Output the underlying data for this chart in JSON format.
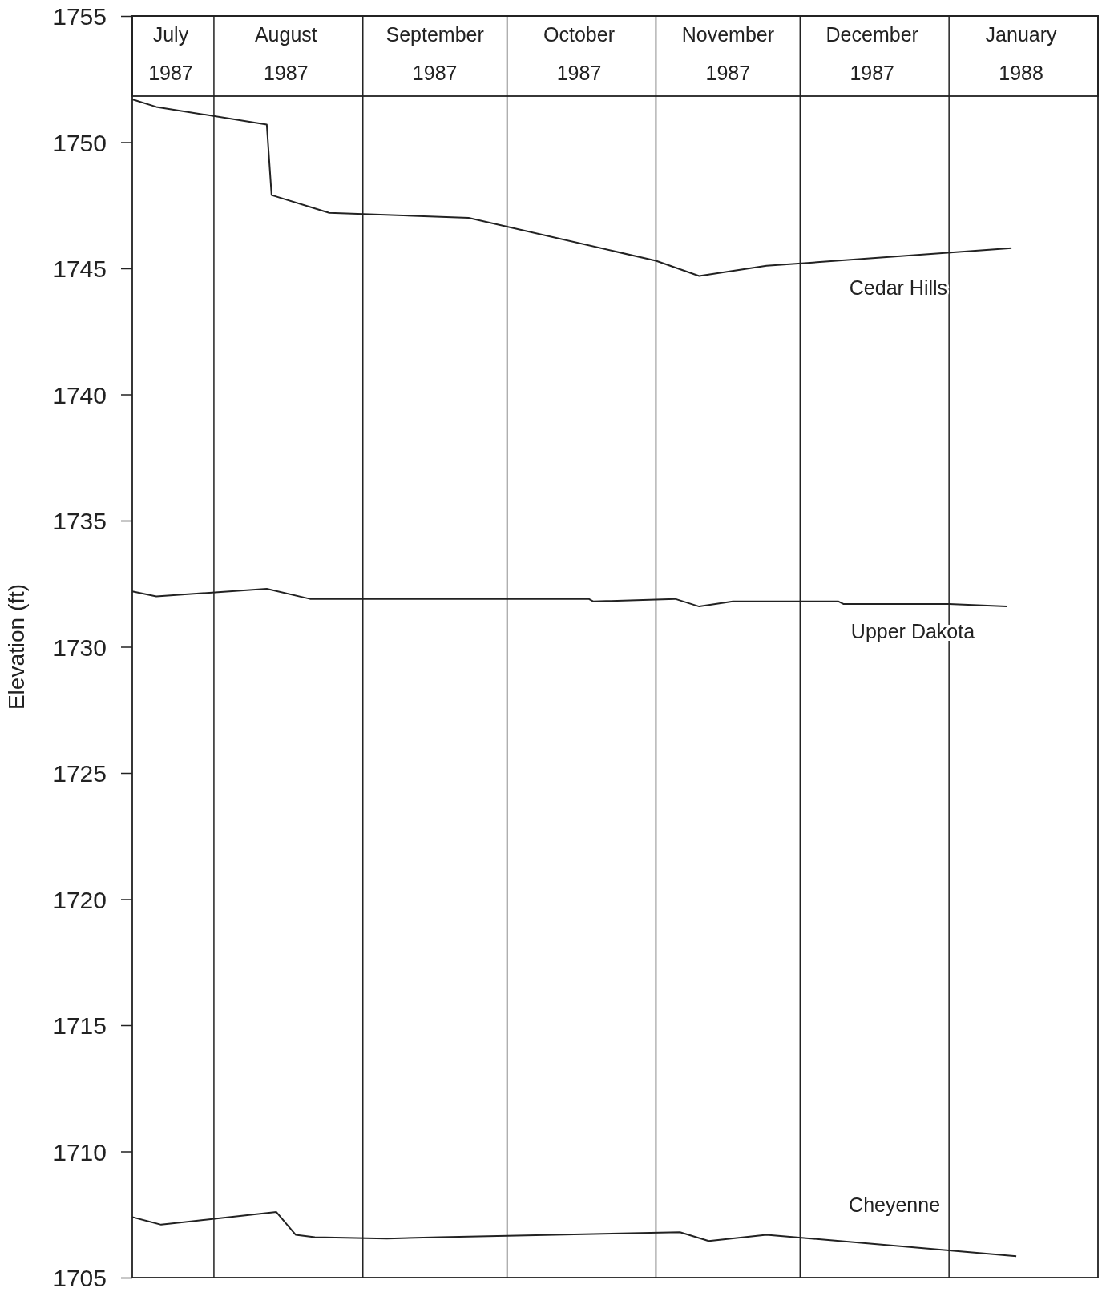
{
  "chart_data": {
    "type": "line",
    "ylabel": "Elevation (ft)",
    "ylim": [
      1705,
      1755
    ],
    "yticks": [
      1705,
      1710,
      1715,
      1720,
      1725,
      1730,
      1735,
      1740,
      1745,
      1750,
      1755
    ],
    "xlim": [
      "1987-07-15",
      "1988-02-01"
    ],
    "xticks": [
      {
        "value": "1987-08-01",
        "label": null
      },
      {
        "value": "1987-09-01",
        "label": null
      },
      {
        "value": "1987-10-01",
        "label": null
      },
      {
        "value": "1987-11-01",
        "label": null
      },
      {
        "value": "1987-12-01",
        "label": null
      },
      {
        "value": "1988-01-01",
        "label": null
      },
      {
        "value": "1987-07-23",
        "label": "July 1987"
      },
      {
        "value": "1987-08-16",
        "label": "August 1987"
      },
      {
        "value": "1987-09-16",
        "label": "September 1987"
      },
      {
        "value": "1987-10-16",
        "label": "October 1987"
      },
      {
        "value": "1987-11-16",
        "label": "November 1987"
      },
      {
        "value": "1987-12-16",
        "label": "December 1987"
      },
      {
        "value": "1988-01-16",
        "label": "January 1988"
      }
    ],
    "grid": "x",
    "marker": "none",
    "line_style": "solid",
    "series": [
      {
        "name": "Cedar Hills",
        "color": "#222222",
        "x": [
          "1987-07-15",
          "1987-07-20",
          "1987-08-12",
          "1987-08-13",
          "1987-08-25",
          "1987-09-23",
          "1987-11-01",
          "1987-11-10",
          "1987-11-24",
          "1988-01-14"
        ],
        "values": [
          1751.7,
          1751.4,
          1750.7,
          1747.9,
          1747.2,
          1747.0,
          1745.3,
          1744.7,
          1745.1,
          1745.8
        ]
      },
      {
        "name": "Upper Dakota",
        "color": "#222222",
        "x": [
          "1987-07-15",
          "1987-07-20",
          "1987-08-12",
          "1987-08-21",
          "1987-10-18",
          "1987-10-19",
          "1987-11-05",
          "1987-11-10",
          "1987-11-17",
          "1987-12-09",
          "1987-12-10",
          "1988-01-01",
          "1988-01-13"
        ],
        "values": [
          1732.2,
          1732.0,
          1732.3,
          1731.9,
          1731.9,
          1731.8,
          1731.9,
          1731.6,
          1731.8,
          1731.8,
          1731.7,
          1731.7,
          1731.6
        ]
      },
      {
        "name": "Cheyenne",
        "color": "#222222",
        "x": [
          "1987-07-15",
          "1987-07-21",
          "1987-08-14",
          "1987-08-18",
          "1987-08-22",
          "1987-09-06",
          "1987-09-17",
          "1987-10-11",
          "1987-11-06",
          "1987-11-12",
          "1987-11-24",
          "1988-01-15"
        ],
        "values": [
          1707.4,
          1707.1,
          1707.6,
          1706.7,
          1706.6,
          1706.55,
          1706.6,
          1706.7,
          1706.8,
          1706.45,
          1706.7,
          1705.85
        ]
      }
    ]
  }
}
